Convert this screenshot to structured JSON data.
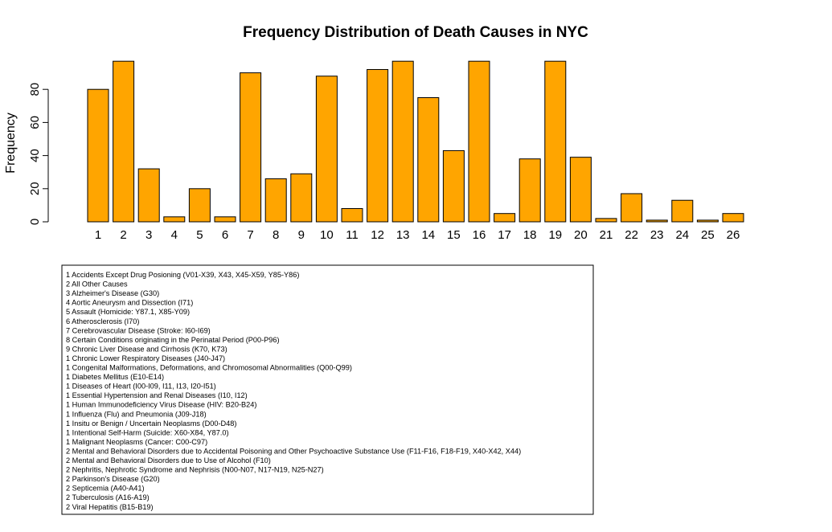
{
  "chart_data": {
    "type": "bar",
    "title": "Frequency Distribution of Death Causes in NYC",
    "xlabel": "",
    "ylabel": "Frequency",
    "categories": [
      "1",
      "2",
      "3",
      "4",
      "5",
      "6",
      "7",
      "8",
      "9",
      "10",
      "11",
      "12",
      "13",
      "14",
      "15",
      "16",
      "17",
      "18",
      "19",
      "20",
      "21",
      "22",
      "23",
      "24",
      "25",
      "26"
    ],
    "values": [
      80,
      97,
      32,
      3,
      20,
      3,
      90,
      26,
      29,
      88,
      8,
      92,
      97,
      75,
      43,
      97,
      5,
      38,
      97,
      39,
      2,
      17,
      1,
      13,
      1,
      5
    ],
    "y_ticks": [
      "0",
      "20",
      "40",
      "60",
      "80"
    ],
    "ylim": [
      0,
      97
    ],
    "bar_color": "#FFA500",
    "bar_edge_color": "#000000",
    "grid": false,
    "legend": {
      "placement": "bottom-left",
      "entries": [
        "1  Accidents Except Drug Posioning (V01-X39, X43, X45-X59, Y85-Y86)",
        "2  All Other Causes",
        "3  Alzheimer's Disease (G30)",
        "4  Aortic Aneurysm and Dissection (I71)",
        "5  Assault (Homicide: Y87.1, X85-Y09)",
        "6  Atherosclerosis (I70)",
        "7  Cerebrovascular Disease (Stroke: I60-I69)",
        "8  Certain Conditions originating in the Perinatal Period (P00-P96)",
        "9  Chronic Liver Disease and Cirrhosis (K70, K73)",
        "1  Chronic Lower Respiratory Diseases (J40-J47)",
        "1  Congenital Malformations, Deformations, and Chromosomal Abnormalities (Q00-Q99)",
        "1  Diabetes Mellitus (E10-E14)",
        "1  Diseases of Heart (I00-I09, I11, I13, I20-I51)",
        "1  Essential Hypertension and Renal Diseases (I10, I12)",
        "1  Human Immunodeficiency Virus Disease (HIV: B20-B24)",
        "1  Influenza (Flu) and Pneumonia (J09-J18)",
        "1  Insitu or Benign / Uncertain Neoplasms (D00-D48)",
        "1  Intentional Self-Harm (Suicide: X60-X84, Y87.0)",
        "1  Malignant Neoplasms (Cancer: C00-C97)",
        "2  Mental and Behavioral Disorders due to Accidental Poisoning and Other Psychoactive Substance Use (F11-F16, F18-F19, X40-X42, X44)",
        "2  Mental and Behavioral Disorders due to Use of Alcohol (F10)",
        "2  Nephritis, Nephrotic Syndrome and Nephrisis (N00-N07, N17-N19, N25-N27)",
        "2  Parkinson's Disease (G20)",
        "2  Septicemia (A40-A41)",
        "2  Tuberculosis (A16-A19)",
        "2  Viral Hepatitis (B15-B19)"
      ]
    }
  }
}
